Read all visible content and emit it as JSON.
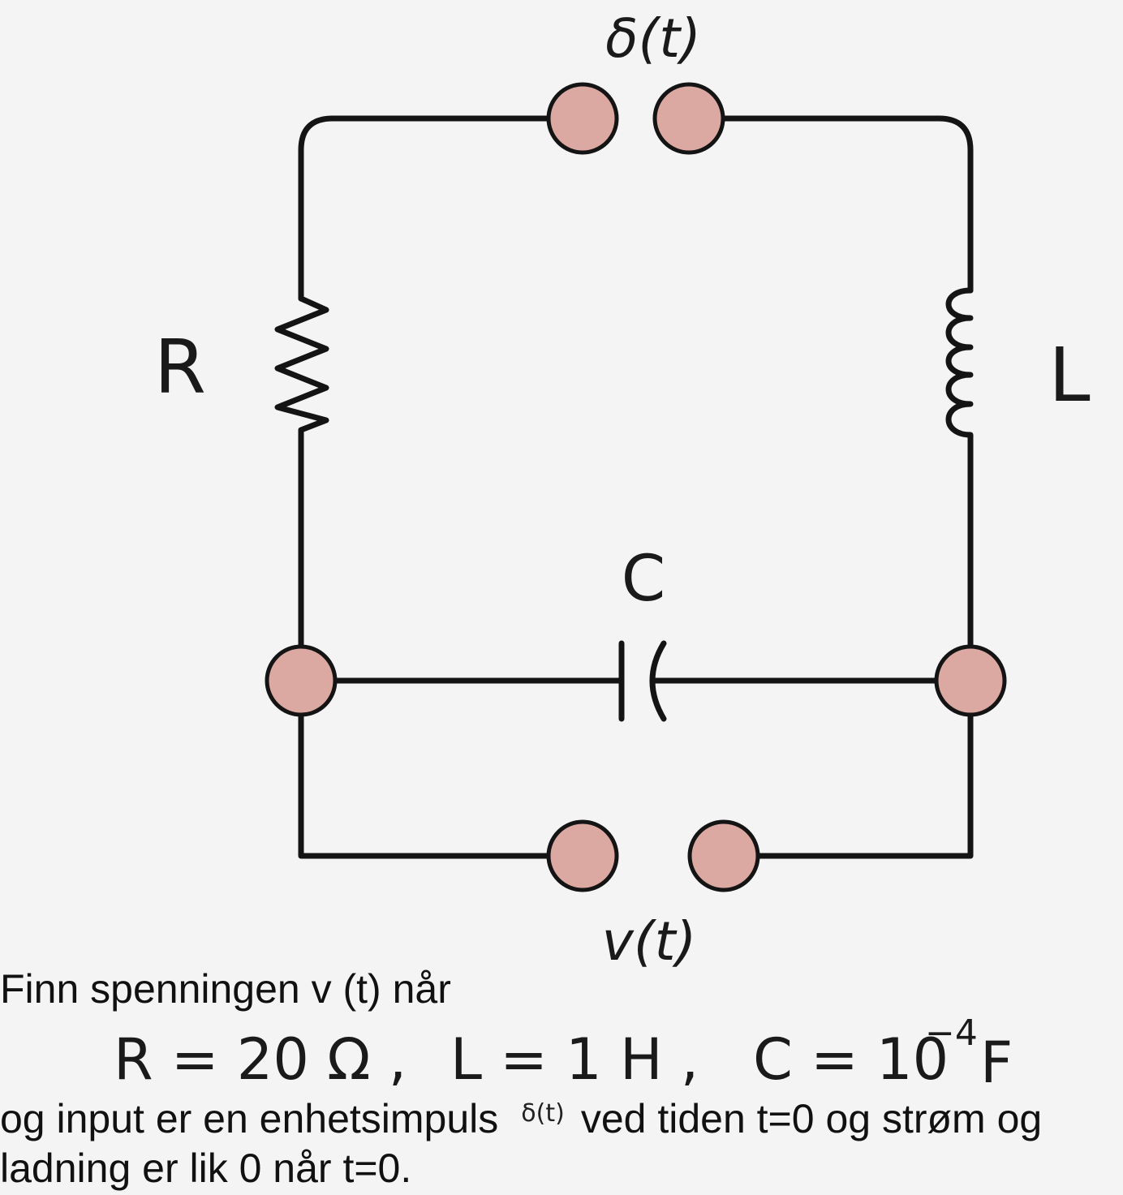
{
  "labels": {
    "source": "δ(t)",
    "resistor": "R",
    "inductor": "L",
    "capacitor": "C",
    "output": "v(t)"
  },
  "problem": {
    "line1": "Finn spenningen v (t) når",
    "values": {
      "r": "R = 20 Ω ,",
      "l": "L = 1 H ,",
      "c_base": "C = 10",
      "c_exp": "−4",
      "c_unit": "F"
    },
    "line3_before": "og input er en enhetsimpuls",
    "line3_symbol": "δ(t)",
    "line3_after": "ved tiden t=0 og strøm og",
    "line4": "ladning er lik 0 når t=0."
  },
  "colors": {
    "terminal_fill": "#dba9a1",
    "wire": "#141414",
    "background": "#f4f4f4"
  }
}
